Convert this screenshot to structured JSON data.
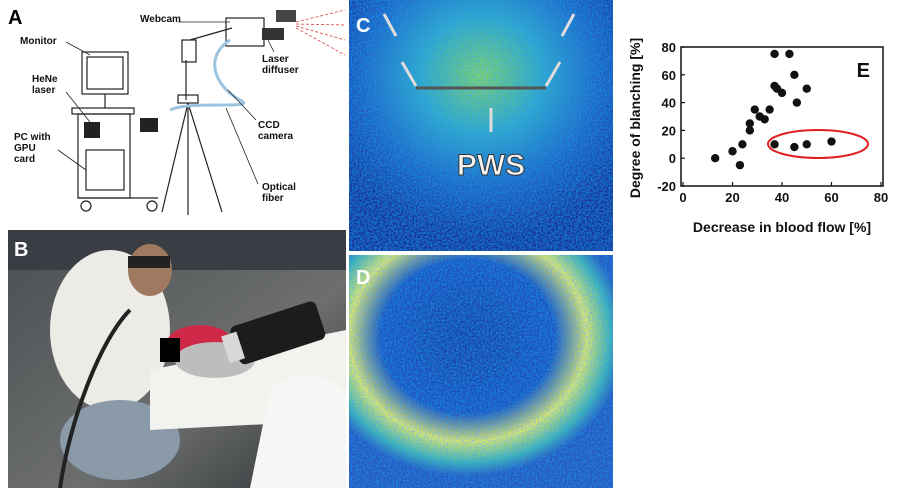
{
  "panels": {
    "a": {
      "label": "A",
      "callouts": [
        [
          "Monitor"
        ],
        [
          "HeNe",
          "laser"
        ],
        [
          "PC with",
          "GPU",
          "card"
        ],
        [
          "Webcam"
        ],
        [
          "Laser",
          "diffuser"
        ],
        [
          "CCD",
          "camera"
        ],
        [
          "Optical",
          "fiber"
        ]
      ]
    },
    "b": {
      "label": "B"
    },
    "c": {
      "label": "C",
      "annotation": "PWS"
    },
    "d": {
      "label": "D"
    }
  },
  "chart_data": {
    "type": "scatter",
    "panel_label": "E",
    "x_label": "Decrease in blood flow [%]",
    "y_label": "Degree of blanching [%]",
    "x": [
      13,
      20,
      23,
      24,
      27,
      27,
      29,
      31,
      33,
      35,
      37,
      37,
      38,
      40,
      43,
      45,
      46,
      50,
      37,
      45,
      50,
      60
    ],
    "values": [
      0,
      5,
      -5,
      10,
      20,
      25,
      35,
      30,
      28,
      35,
      75,
      52,
      50,
      47,
      75,
      60,
      40,
      50,
      10,
      8,
      10,
      12
    ],
    "color": "#111111",
    "xlim": [
      0,
      80
    ],
    "ylim": [
      -20,
      80
    ],
    "xticks": [
      0,
      20,
      40,
      60,
      80
    ],
    "yticks": [
      -20,
      0,
      20,
      40,
      60,
      80
    ]
  }
}
